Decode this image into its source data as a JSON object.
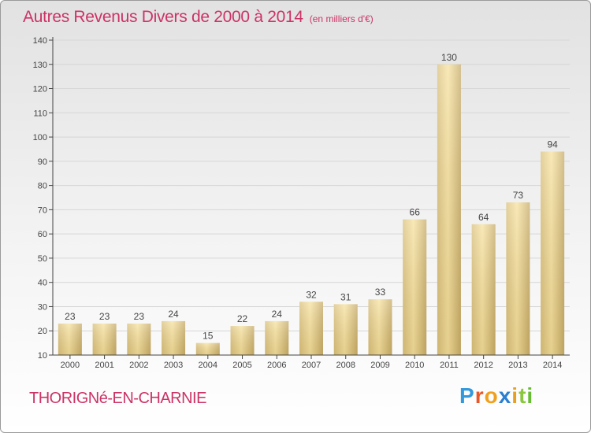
{
  "header": {
    "title": "Autres Revenus Divers de 2000 à 2014",
    "subtitle": "(en milliers d'€)"
  },
  "footer": {
    "commune": "THORIGNé-EN-CHARNIE",
    "logo": "Proxiti"
  },
  "colors": {
    "title": "#cc3366",
    "bar_light": "#f7e2a0",
    "bar_dark": "#c9b070",
    "grid": "#d6d6d6",
    "axis": "#444444"
  },
  "chart_data": {
    "type": "bar",
    "title": "Autres Revenus Divers de 2000 à 2014",
    "subtitle": "(en milliers d'€)",
    "categories": [
      "2000",
      "2001",
      "2002",
      "2003",
      "2004",
      "2005",
      "2006",
      "2007",
      "2008",
      "2009",
      "2010",
      "2011",
      "2012",
      "2013",
      "2014"
    ],
    "values": [
      23,
      23,
      23,
      24,
      15,
      22,
      24,
      32,
      31,
      33,
      66,
      130,
      64,
      73,
      94
    ],
    "ylim": [
      10,
      140
    ],
    "yticks": [
      10,
      20,
      30,
      40,
      50,
      60,
      70,
      80,
      90,
      100,
      110,
      120,
      130,
      140
    ],
    "grid": true,
    "xlabel": "",
    "ylabel": ""
  }
}
